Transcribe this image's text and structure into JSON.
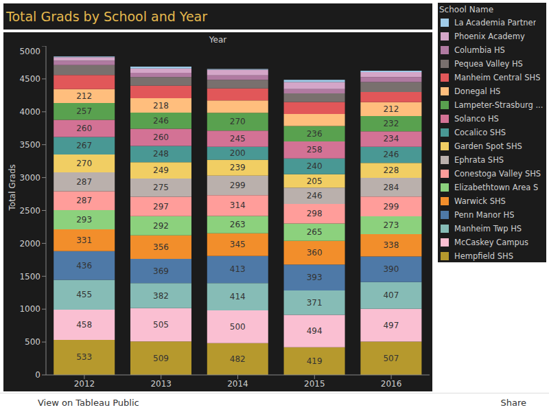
{
  "chart_data": {
    "type": "bar",
    "title": "Total Grads by School and Year",
    "x_label": "Year",
    "y_label": "Total Grads",
    "legend_title": "School Name",
    "categories": [
      "2012",
      "2013",
      "2014",
      "2015",
      "2016"
    ],
    "stacked": true,
    "grid": false,
    "legend": "right",
    "ylim": [
      0,
      5000
    ],
    "yticks": [
      0,
      500,
      1000,
      1500,
      2000,
      2500,
      3000,
      3500,
      4000,
      4500,
      5000
    ],
    "series": [
      {
        "name": "Hempfield SHS",
        "color": "#b6992d",
        "values": [
          533,
          509,
          482,
          419,
          507
        ],
        "value_labels": [
          "533",
          "509",
          "482",
          "419",
          "507"
        ]
      },
      {
        "name": "McCaskey Campus",
        "color": "#fabfd2",
        "values": [
          458,
          505,
          500,
          494,
          497
        ],
        "value_labels": [
          "458",
          "505",
          "500",
          "494",
          "497"
        ]
      },
      {
        "name": "Manheim Twp HS",
        "color": "#86bcb6",
        "values": [
          455,
          382,
          414,
          371,
          407
        ],
        "value_labels": [
          "455",
          "382",
          "414",
          "371",
          "407"
        ]
      },
      {
        "name": "Penn Manor HS",
        "color": "#4e79a7",
        "values": [
          436,
          369,
          413,
          393,
          390
        ],
        "value_labels": [
          "436",
          "369",
          "413",
          "393",
          "390"
        ]
      },
      {
        "name": "Warwick SHS",
        "color": "#f28e2b",
        "values": [
          331,
          356,
          345,
          360,
          338
        ],
        "value_labels": [
          "331",
          "356",
          "345",
          "360",
          "338"
        ]
      },
      {
        "name": "Elizabethtown Area S",
        "color": "#8cd17d",
        "values": [
          293,
          292,
          263,
          265,
          273
        ],
        "value_labels": [
          "293",
          "292",
          "263",
          "265",
          "273"
        ]
      },
      {
        "name": "Conestoga Valley SHS",
        "color": "#ff9d9a",
        "values": [
          287,
          297,
          314,
          298,
          299
        ],
        "value_labels": [
          "287",
          "297",
          "314",
          "298",
          "299"
        ]
      },
      {
        "name": "Ephrata SHS",
        "color": "#bab0ac",
        "values": [
          287,
          275,
          299,
          246,
          284
        ],
        "value_labels": [
          "287",
          "275",
          "299",
          "246",
          "284"
        ]
      },
      {
        "name": "Garden Spot SHS",
        "color": "#f1ce63",
        "values": [
          270,
          249,
          239,
          205,
          228
        ],
        "value_labels": [
          "270",
          "249",
          "239",
          "205",
          "228"
        ]
      },
      {
        "name": "Cocalico SHS",
        "color": "#499894",
        "values": [
          267,
          248,
          200,
          240,
          246
        ],
        "value_labels": [
          "267",
          "248",
          "200",
          "240",
          "246"
        ]
      },
      {
        "name": "Solanco HS",
        "color": "#d37295",
        "values": [
          260,
          260,
          245,
          258,
          234
        ],
        "value_labels": [
          "260",
          "260",
          "245",
          "258",
          "234"
        ]
      },
      {
        "name": "Lampeter-Strasburg ...",
        "color": "#59a14f",
        "values": [
          257,
          246,
          270,
          236,
          232
        ],
        "value_labels": [
          "257",
          "246",
          "270",
          "236",
          "232"
        ]
      },
      {
        "name": "Donegal HS",
        "color": "#ffbe7d",
        "values": [
          212,
          218,
          188,
          182,
          212
        ],
        "value_labels": [
          "212",
          "218",
          null,
          null,
          "212"
        ]
      },
      {
        "name": "Manheim Central SHS",
        "color": "#e15759",
        "values": [
          214,
          192,
          183,
          183,
          153
        ]
      },
      {
        "name": "Pequea Valley HS",
        "color": "#79706e",
        "values": [
          151,
          130,
          130,
          130,
          152
        ]
      },
      {
        "name": "Columbia HS",
        "color": "#b07aa1",
        "values": [
          64,
          64,
          70,
          64,
          76
        ]
      },
      {
        "name": "Phoenix Academy",
        "color": "#d4a6c8",
        "values": [
          55,
          65,
          85,
          108,
          75
        ]
      },
      {
        "name": "La Academia Partner",
        "color": "#a0cbe8",
        "values": [
          10,
          30,
          10,
          33,
          22
        ]
      }
    ]
  },
  "toolbar": {
    "left": "View on Tableau Public",
    "right": "Share"
  }
}
